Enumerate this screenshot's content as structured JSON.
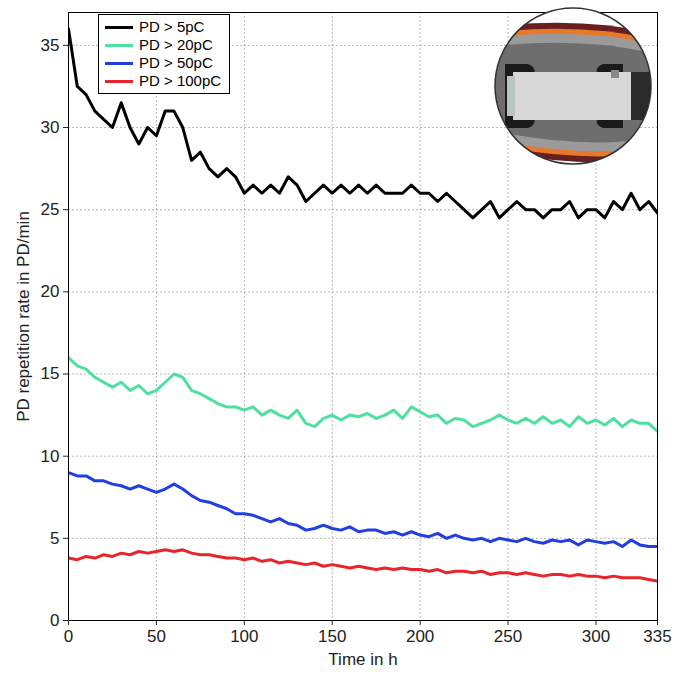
{
  "chart_data": {
    "type": "line",
    "x_label": "Time in h",
    "y_label": "PD repetition rate in PD/min",
    "x": [
      0,
      5,
      10,
      15,
      20,
      25,
      30,
      35,
      40,
      45,
      50,
      55,
      60,
      65,
      70,
      75,
      80,
      85,
      90,
      95,
      100,
      105,
      110,
      115,
      120,
      125,
      130,
      135,
      140,
      145,
      150,
      155,
      160,
      165,
      170,
      175,
      180,
      185,
      190,
      195,
      200,
      205,
      210,
      215,
      220,
      225,
      230,
      235,
      240,
      245,
      250,
      255,
      260,
      265,
      270,
      275,
      280,
      285,
      290,
      295,
      300,
      305,
      310,
      315,
      320,
      325,
      330,
      335
    ],
    "series": [
      {
        "name": "PD > 5pC",
        "color": "#000000",
        "values": [
          36,
          32.5,
          32,
          31,
          30.5,
          30,
          31.5,
          30,
          29,
          30,
          29.5,
          31,
          31,
          30,
          28,
          28.5,
          27.5,
          27,
          27.5,
          27,
          26,
          26.5,
          26,
          26.5,
          26,
          27,
          26.5,
          25.5,
          26,
          26.5,
          26,
          26.5,
          26,
          26.5,
          26,
          26.5,
          26,
          26,
          26,
          26.5,
          26,
          26,
          25.5,
          26,
          25.5,
          25,
          24.5,
          25,
          25.5,
          24.5,
          25,
          25.5,
          25,
          25,
          24.5,
          25,
          25,
          25.5,
          24.5,
          25,
          25,
          24.5,
          25.5,
          25,
          26,
          25,
          25.5,
          24.8
        ]
      },
      {
        "name": "PD > 20pC",
        "color": "#50dfa0",
        "values": [
          16,
          15.5,
          15.3,
          14.8,
          14.5,
          14.2,
          14.5,
          14,
          14.3,
          13.8,
          14,
          14.5,
          15,
          14.8,
          14,
          13.8,
          13.5,
          13.2,
          13,
          13,
          12.8,
          13,
          12.5,
          12.8,
          12.5,
          12.3,
          12.8,
          12,
          11.8,
          12.3,
          12.5,
          12.2,
          12.5,
          12.4,
          12.6,
          12.3,
          12.5,
          12.8,
          12.3,
          13,
          12.7,
          12.4,
          12.5,
          12,
          12.3,
          12.2,
          11.8,
          12,
          12.2,
          12.5,
          12.2,
          12,
          12.3,
          12,
          12.4,
          12,
          12.2,
          11.8,
          12.4,
          12,
          12.2,
          11.9,
          12.3,
          11.8,
          12.2,
          12,
          12,
          11.5
        ]
      },
      {
        "name": "PD > 50pC",
        "color": "#1f3fe0",
        "values": [
          9,
          8.8,
          8.8,
          8.5,
          8.5,
          8.3,
          8.2,
          8,
          8.2,
          8,
          7.8,
          8,
          8.3,
          8,
          7.6,
          7.3,
          7.2,
          7,
          6.8,
          6.5,
          6.5,
          6.4,
          6.2,
          6,
          6.2,
          5.9,
          5.8,
          5.5,
          5.6,
          5.8,
          5.6,
          5.5,
          5.7,
          5.4,
          5.5,
          5.5,
          5.3,
          5.4,
          5.2,
          5.4,
          5.2,
          5.1,
          5.3,
          5,
          5.2,
          5,
          4.9,
          5,
          4.8,
          5,
          4.9,
          4.8,
          5,
          4.8,
          4.7,
          4.9,
          4.8,
          4.9,
          4.6,
          4.9,
          4.8,
          4.7,
          4.8,
          4.5,
          4.9,
          4.6,
          4.5,
          4.5
        ]
      },
      {
        "name": "PD > 100pC",
        "color": "#e8252a",
        "values": [
          3.8,
          3.7,
          3.9,
          3.8,
          4,
          3.9,
          4.1,
          4,
          4.2,
          4.1,
          4.2,
          4.3,
          4.2,
          4.3,
          4.1,
          4,
          4,
          3.9,
          3.8,
          3.8,
          3.7,
          3.8,
          3.6,
          3.7,
          3.5,
          3.6,
          3.5,
          3.4,
          3.5,
          3.3,
          3.4,
          3.3,
          3.2,
          3.3,
          3.2,
          3.1,
          3.2,
          3.1,
          3.2,
          3.1,
          3.1,
          3,
          3.1,
          2.9,
          3,
          3,
          2.9,
          3,
          2.8,
          2.9,
          2.9,
          2.8,
          2.9,
          2.8,
          2.7,
          2.8,
          2.8,
          2.7,
          2.8,
          2.7,
          2.7,
          2.6,
          2.7,
          2.6,
          2.6,
          2.6,
          2.5,
          2.4
        ]
      }
    ],
    "xlim": [
      0,
      335
    ],
    "xticks": [
      0,
      50,
      100,
      150,
      200,
      250,
      300,
      335
    ],
    "ylim": [
      0,
      37
    ],
    "yticks": [
      0,
      5,
      10,
      15,
      20,
      25,
      30,
      35
    ],
    "grid": true,
    "legend": "top-left"
  }
}
